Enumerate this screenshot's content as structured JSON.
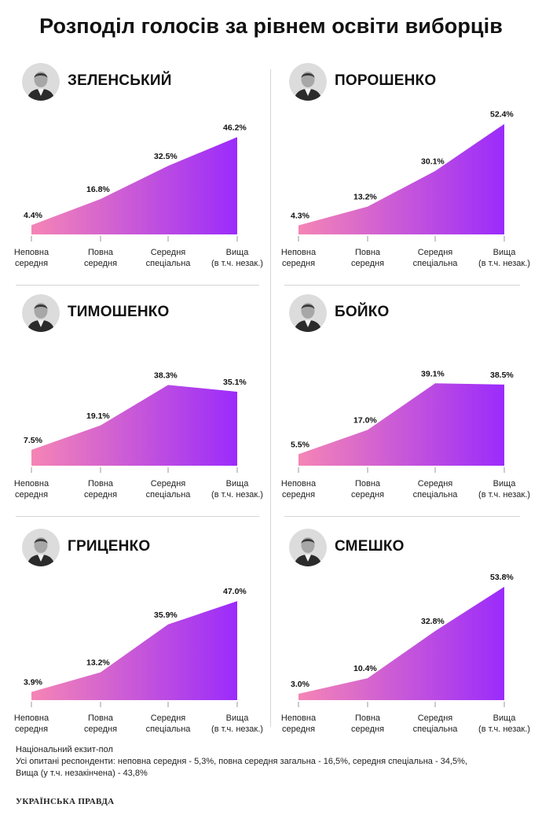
{
  "title": "Розподіл голосів за рівнем освіти виборців",
  "categories": [
    [
      "Неповна",
      "середня"
    ],
    [
      "Повна",
      "середня"
    ],
    [
      "Середня",
      "спеціальна"
    ],
    [
      "Вища",
      "(в т.ч. незак.)"
    ]
  ],
  "colors": {
    "gradient_start": "#f585b5",
    "gradient_end": "#9b2bfb"
  },
  "chart_data": [
    {
      "type": "area",
      "title": "ЗЕЛЕНСЬКИЙ",
      "series": [
        {
          "values": [
            4.4,
            16.8,
            32.5,
            46.2
          ],
          "labels": [
            "4.4%",
            "16.8%",
            "32.5%",
            "46.2%"
          ]
        }
      ],
      "ylim": [
        0,
        56
      ],
      "xlabel": "",
      "ylabel": "",
      "legend": "none",
      "grid": false
    },
    {
      "type": "area",
      "title": "ПОРОШЕНКО",
      "series": [
        {
          "values": [
            4.3,
            13.2,
            30.1,
            52.4
          ],
          "labels": [
            "4.3%",
            "13.2%",
            "30.1%",
            "52.4%"
          ]
        }
      ],
      "ylim": [
        0,
        56
      ],
      "xlabel": "",
      "ylabel": "",
      "legend": "none",
      "grid": false
    },
    {
      "type": "area",
      "title": "ТИМОШЕНКО",
      "series": [
        {
          "values": [
            7.5,
            19.1,
            38.3,
            35.1
          ],
          "labels": [
            "7.5%",
            "19.1%",
            "38.3%",
            "35.1%"
          ]
        }
      ],
      "ylim": [
        0,
        56
      ],
      "xlabel": "",
      "ylabel": "",
      "legend": "none",
      "grid": false
    },
    {
      "type": "area",
      "title": "БОЙКО",
      "series": [
        {
          "values": [
            5.5,
            17.0,
            39.1,
            38.5
          ],
          "labels": [
            "5.5%",
            "17.0%",
            "39.1%",
            "38.5%"
          ]
        }
      ],
      "ylim": [
        0,
        56
      ],
      "xlabel": "",
      "ylabel": "",
      "legend": "none",
      "grid": false
    },
    {
      "type": "area",
      "title": "ГРИЦЕНКО",
      "series": [
        {
          "values": [
            3.9,
            13.2,
            35.9,
            47.0
          ],
          "labels": [
            "3.9%",
            "13.2%",
            "35.9%",
            "47.0%"
          ]
        }
      ],
      "ylim": [
        0,
        56
      ],
      "xlabel": "",
      "ylabel": "",
      "legend": "none",
      "grid": false
    },
    {
      "type": "area",
      "title": "СМЕШКО",
      "series": [
        {
          "values": [
            3.0,
            10.4,
            32.8,
            53.8
          ],
          "labels": [
            "3.0%",
            "10.4%",
            "32.8%",
            "53.8%"
          ]
        }
      ],
      "ylim": [
        0,
        56
      ],
      "xlabel": "",
      "ylabel": "",
      "legend": "none",
      "grid": false
    }
  ],
  "footnote": {
    "line1": "Національний екзит-пол",
    "line2": "Усі опитані респонденти: неповна середня - 5,3%, повна середня загальна - 16,5%, середня спеціальна - 34,5%,",
    "line3": "Вища (у т.ч. незакінчена) - 43,8%"
  },
  "logo": "УКРАЇНСЬКА ПРАВДА"
}
